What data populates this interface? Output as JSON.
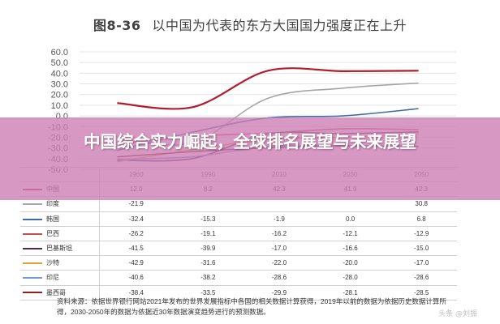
{
  "figure": {
    "number": "图8-36",
    "title": "以中国为代表的东方大国国力强度正在上升"
  },
  "banner": {
    "text": "中国综合实力崛起，全球排名展望与未来展望"
  },
  "source_note": "资料来源：依据世界银行网站2021年发布的世界发展指标中各国的相关数据计算获得，2019年以前的数据为依据历史数据计算所得，2030-2050年的数据为依据近30年数据演变趋势进行的预测数据。",
  "watermark": "头条 @刘振",
  "chart_data": {
    "type": "line",
    "x": [
      "1960",
      "1990",
      "2010",
      "2030",
      "2050"
    ],
    "ylim": [
      -50,
      60
    ],
    "yticks": [
      "60.0",
      "50.0",
      "40.0",
      "30.0",
      "20.0",
      "10.0",
      "0.0",
      "-10.0",
      "-20.0",
      "-30.0",
      "-40.0",
      "-50.0"
    ],
    "grid": true,
    "series": [
      {
        "name": "中国",
        "color": "#b01e2e",
        "values": [
          12.0,
          8.2,
          42.3,
          41.9,
          42.3
        ],
        "labels": [
          "12.0",
          "8.2",
          "42.3",
          "41.9",
          "42.3"
        ]
      },
      {
        "name": "印度",
        "color": "#a6a6a6",
        "values": [
          -21.9,
          -25.0,
          16.5,
          26.0,
          30.8
        ],
        "labels": [
          "-21.9",
          "",
          "",
          "",
          "30.8"
        ]
      },
      {
        "name": "韩国",
        "color": "#3f6aa6",
        "values": [
          -32.4,
          -15.3,
          -1.9,
          0.0,
          6.8
        ],
        "labels": [
          "-32.4",
          "-15.3",
          "-1.9",
          "0.0",
          "6.8"
        ]
      },
      {
        "name": "巴西",
        "color": "#c0504d",
        "values": [
          -26.2,
          -19.1,
          -16.2,
          -12.1,
          -12.9
        ],
        "labels": [
          "-26.2",
          "-19.1",
          "-16.2",
          "-12.1",
          "-12.9"
        ]
      },
      {
        "name": "巴基斯坦",
        "color": "#4d2a4d",
        "values": [
          -41.5,
          -39.9,
          -17.0,
          -16.6,
          -15.0
        ],
        "labels": [
          "-41.5",
          "-39.9",
          "-17.0",
          "-16.6",
          "-15.0"
        ]
      },
      {
        "name": "沙特",
        "color": "#e0a040",
        "values": [
          -42.9,
          -31.6,
          -22.0,
          -20.0,
          -17.0
        ],
        "labels": [
          "-42.9",
          "-31.6",
          "-22.0",
          "-20.0",
          "-17.0"
        ]
      },
      {
        "name": "印尼",
        "color": "#6f9bd0",
        "values": [
          -40.6,
          -38.2,
          -28.6,
          -28.0,
          -28.6
        ],
        "labels": [
          "-40.6",
          "-38.2",
          "-28.6",
          "-28.0",
          "-28.6"
        ]
      },
      {
        "name": "墨西哥",
        "color": "#8b2020",
        "values": [
          -38.4,
          -33.5,
          -29.9,
          -28.1,
          -28.5
        ],
        "labels": [
          "-38.4",
          "-33.5",
          "-29.9",
          "-28.1",
          "-28.5"
        ]
      }
    ]
  }
}
